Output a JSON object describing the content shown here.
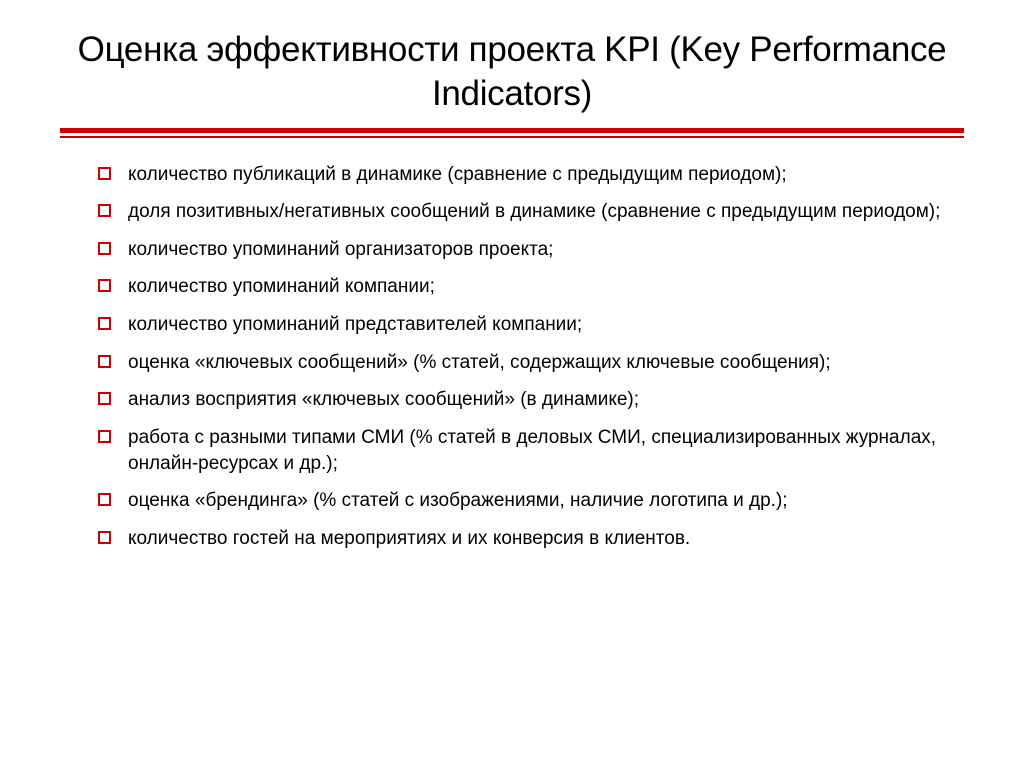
{
  "slide": {
    "title": "Оценка эффективности проекта KPI (Key Performance Indicators)",
    "bullets": [
      "количество публикаций в динамике (сравнение с предыдущим периодом);",
      "доля позитивных/негативных сообщений в динамике (сравнение с предыдущим периодом);",
      "количество упоминаний организаторов проекта;",
      "количество упоминаний компании;",
      "количество упоминаний представителей компании;",
      "оценка «ключевых сообщений» (% статей, содержащих ключевые сообщения);",
      "анализ восприятия «ключевых сообщений» (в динамике);",
      "работа с разными типами СМИ (% статей в деловых СМИ, специализированных журналах, онлайн-ресурсах и др.);",
      "оценка «брендинга» (% статей с изображениями, наличие логотипа и др.);",
      "количество гостей на мероприятиях и их конверсия в клиентов."
    ],
    "colors": {
      "accent": "#cc0000",
      "text": "#000000",
      "background": "#ffffff"
    },
    "typography": {
      "title_fontsize": 35,
      "body_fontsize": 19,
      "font_family": "Verdana"
    },
    "underline": {
      "thick_height": 5,
      "thin_height": 2,
      "gap": 3
    },
    "bullet_marker": {
      "size": 13,
      "border_width": 2,
      "shape": "square-outline"
    }
  }
}
